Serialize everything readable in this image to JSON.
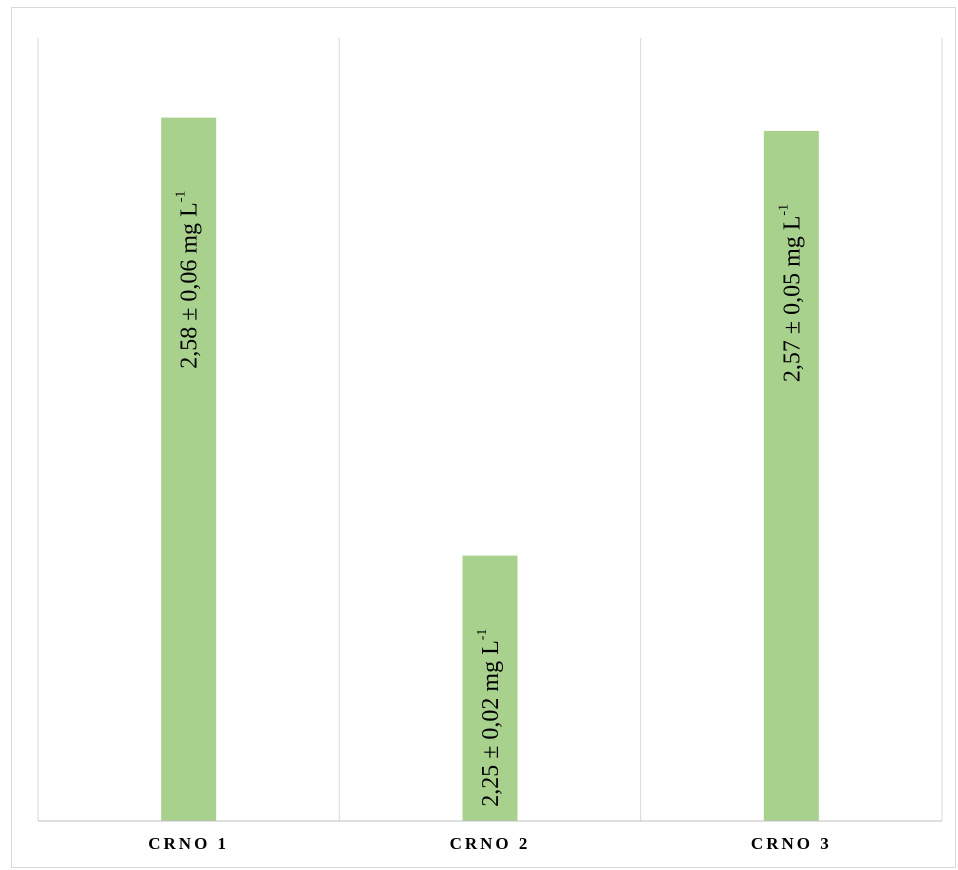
{
  "chart_data": {
    "type": "bar",
    "categories": [
      "CRNO 1",
      "CRNO 2",
      "CRNO 3"
    ],
    "values": [
      2.58,
      2.25,
      2.57
    ],
    "errors": [
      0.06,
      0.02,
      0.05
    ],
    "data_labels": [
      {
        "text": "2,58 ± 0,06 mg L",
        "superscript": "-1"
      },
      {
        "text": "2,25 ± 0,02 mg L",
        "superscript": "-1"
      },
      {
        "text": "2,57 ± 0,05 mg L",
        "superscript": "-1"
      }
    ],
    "title": "",
    "xlabel": "",
    "ylabel": "",
    "ylim": [
      2.05,
      2.64
    ],
    "grid": "vertical category separators",
    "legend": "none",
    "colors": {
      "bar": "#a9d18e",
      "grid": "#d9d9d9",
      "axis": "#bfbfbf",
      "text": "#000000"
    }
  }
}
